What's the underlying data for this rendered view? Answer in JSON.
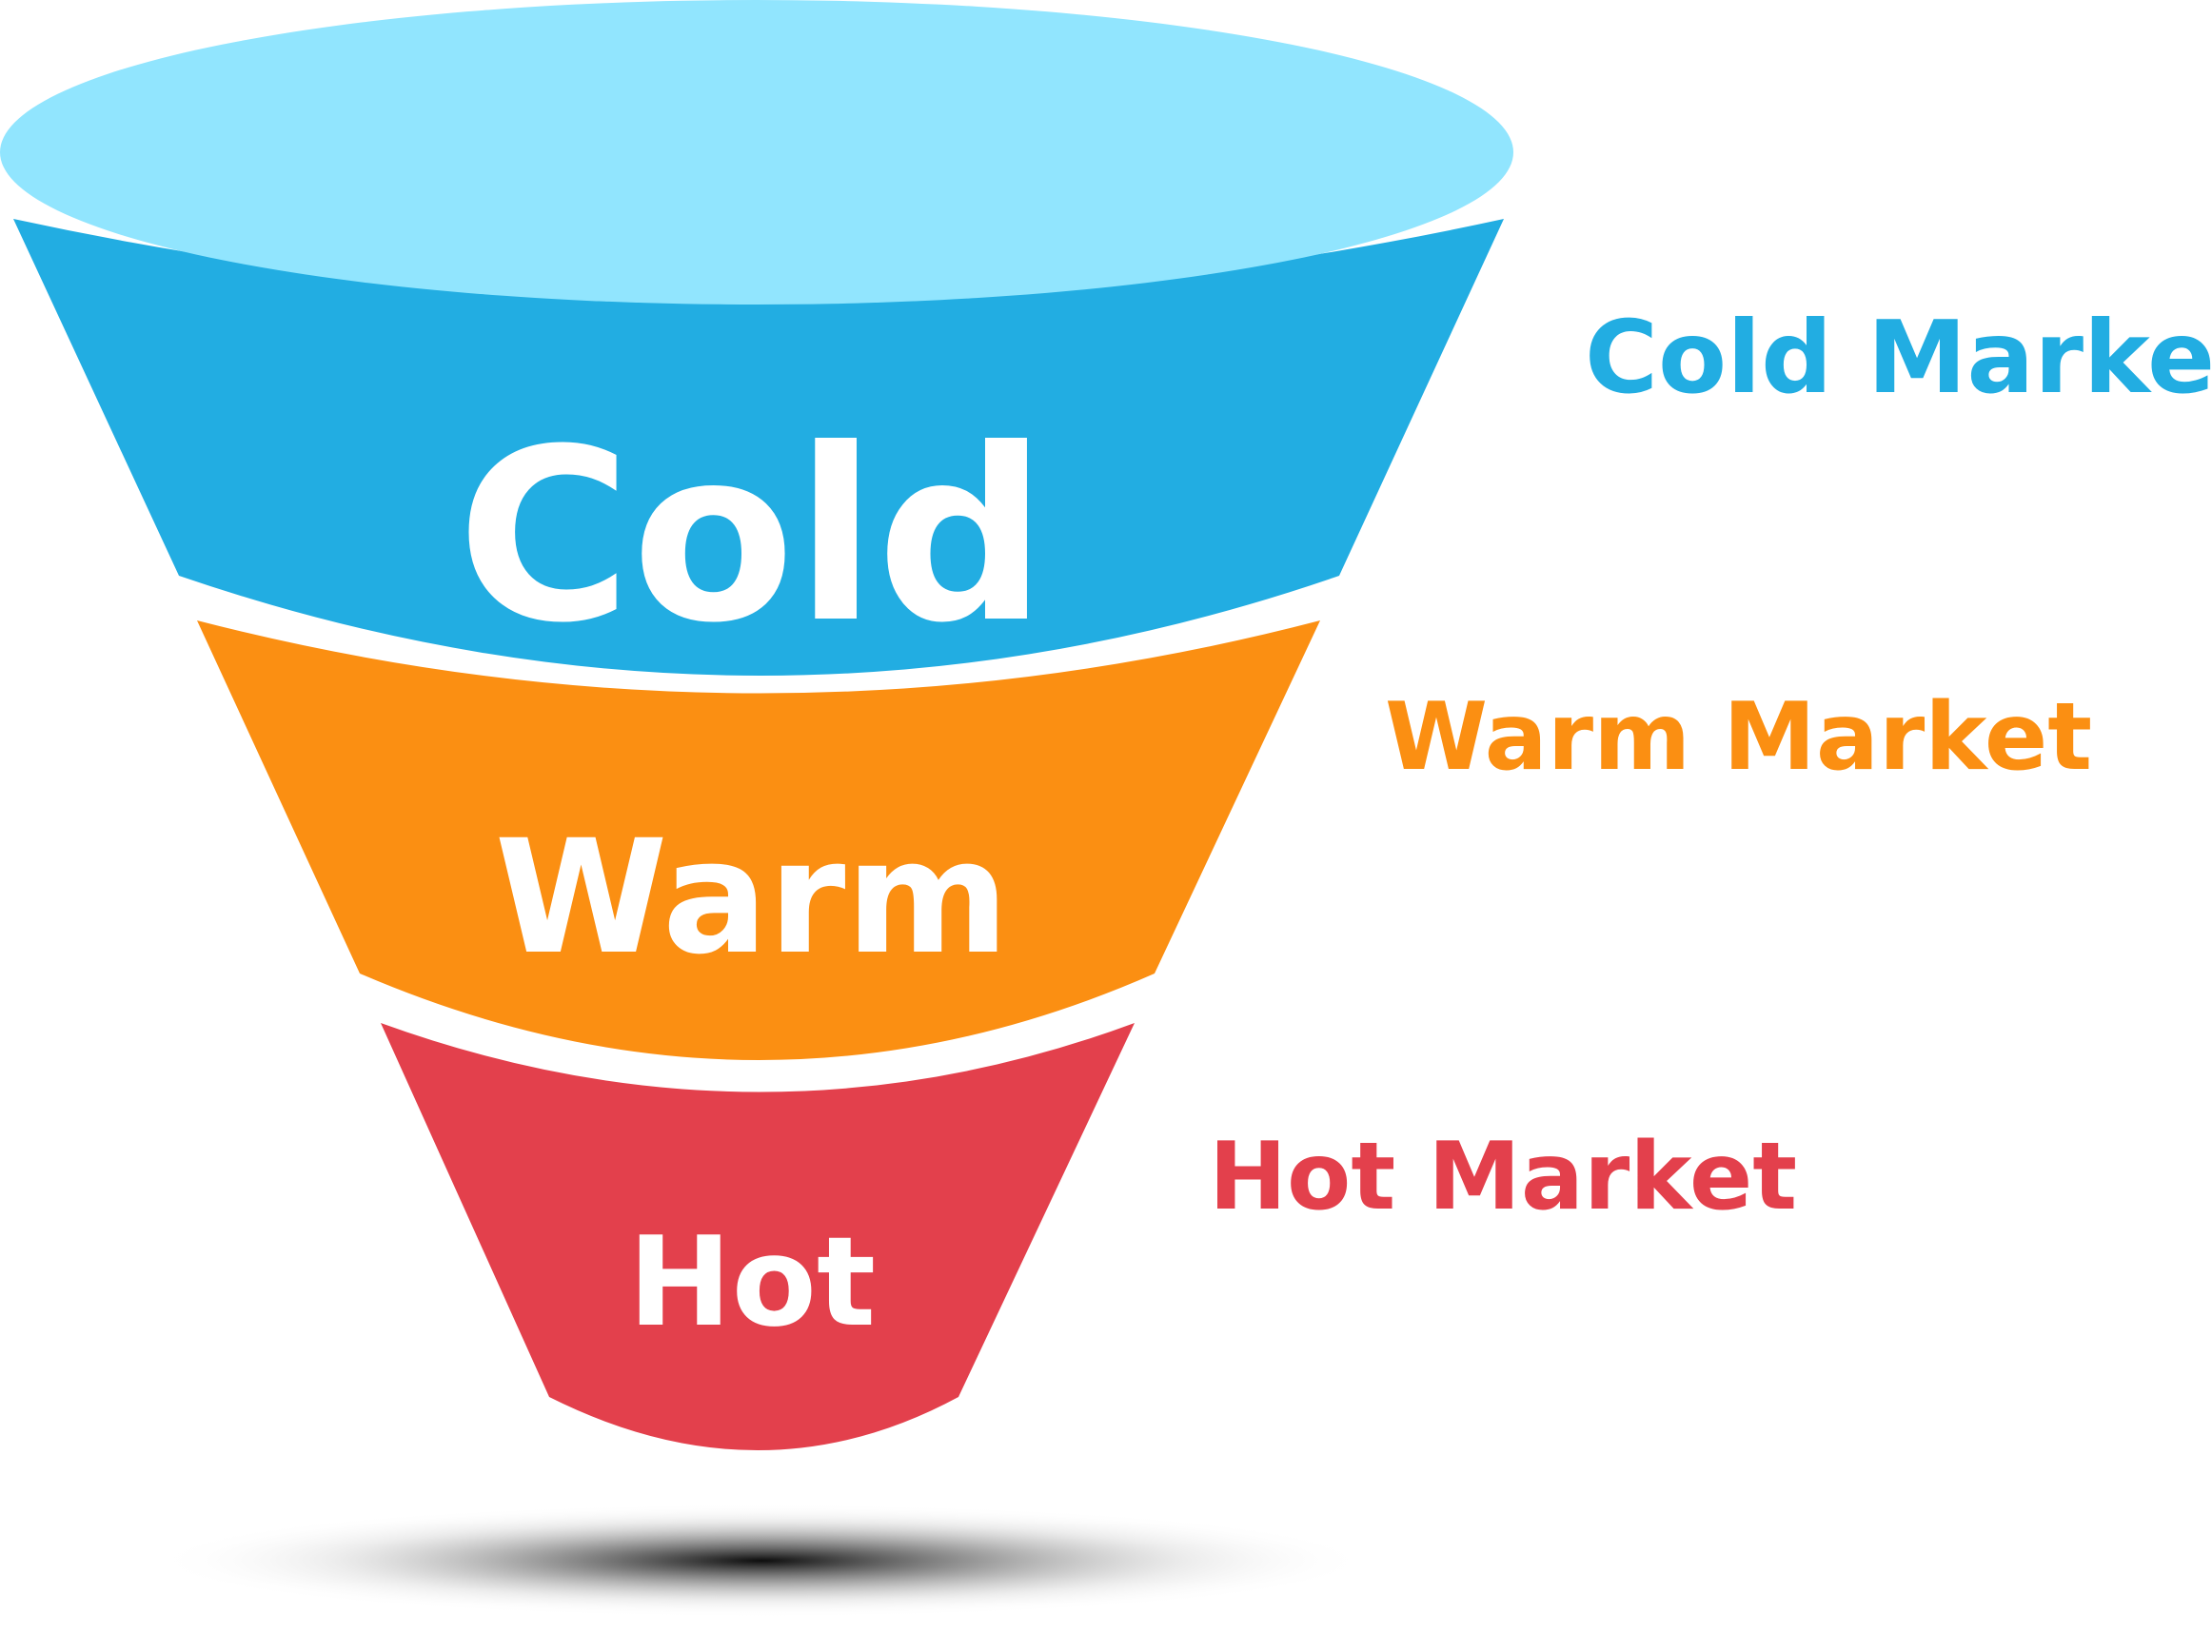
{
  "funnel": {
    "stages": [
      {
        "label": "Cold",
        "side_label": "Cold Market",
        "color": "#22ADE2"
      },
      {
        "label": "Warm",
        "side_label": "Warm Market",
        "color": "#FB8F12"
      },
      {
        "label": "Hot",
        "side_label": "Hot Market",
        "color": "#E3404C"
      }
    ],
    "rim_color": "#91E5FE"
  }
}
